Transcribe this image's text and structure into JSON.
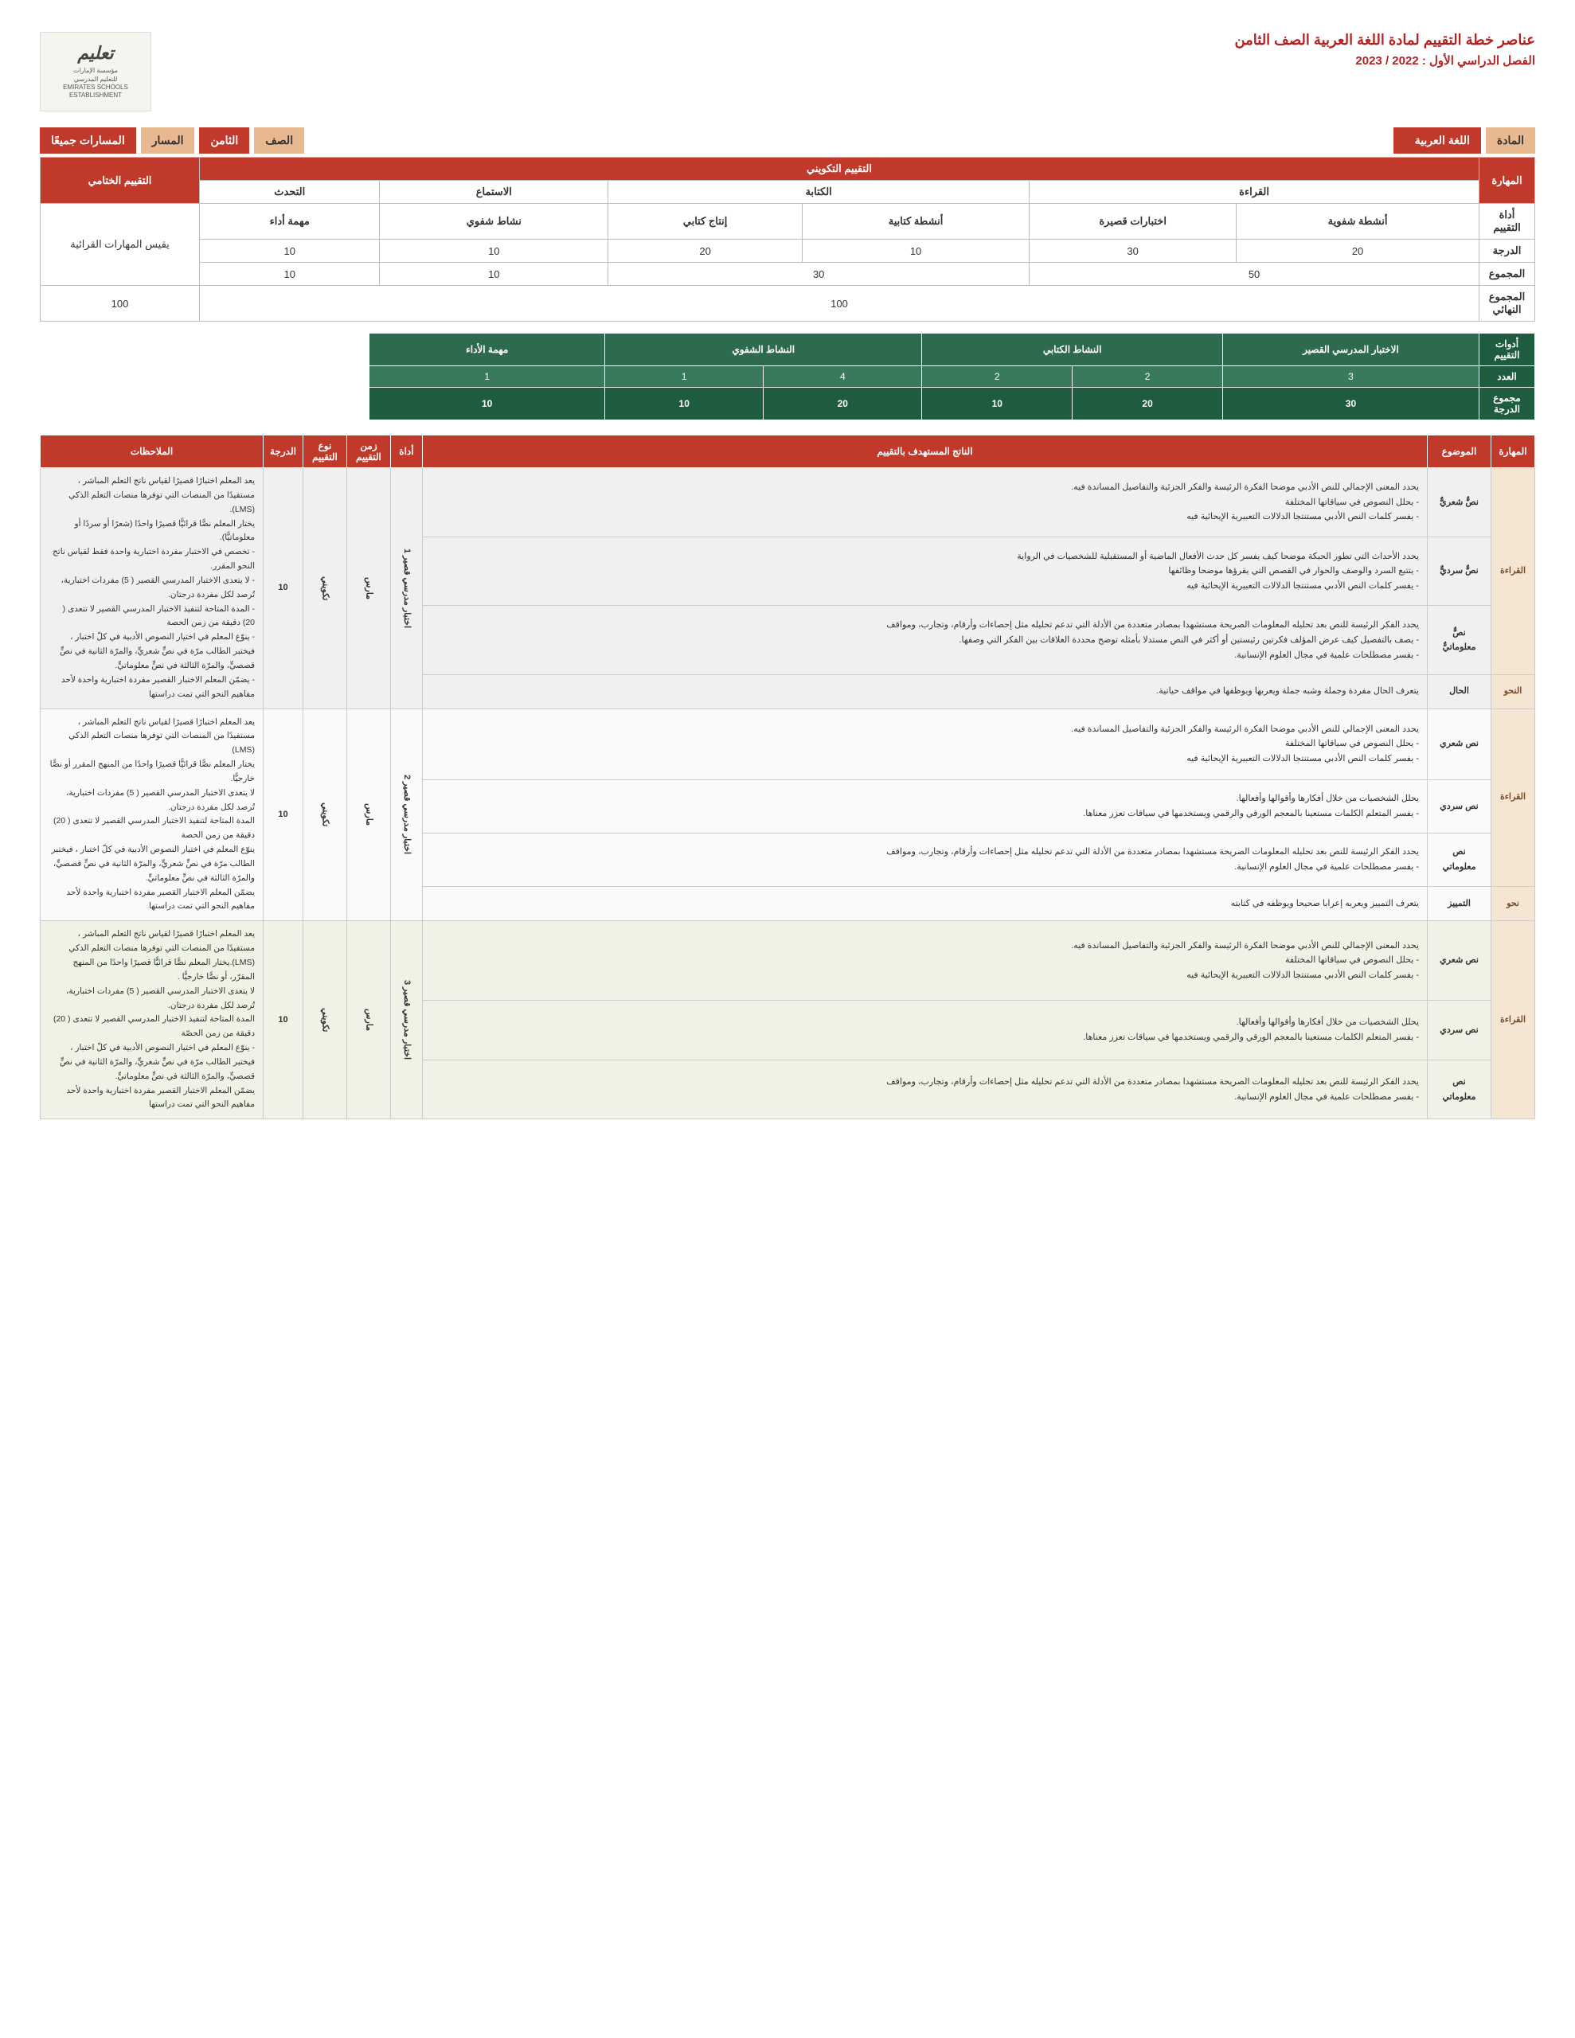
{
  "header": {
    "title": "عناصر خطة التقييم لمادة اللغة العربية الصف الثامن",
    "subtitle": "الفصل الدراسي الأول : 2022 / 2023",
    "logo_ar": "تعليم",
    "logo_lines": "مؤسسة الإمارات\nللتعليم المدرسي\nEMIRATES SCHOOLS\nESTABLISHMENT"
  },
  "banner": {
    "label_subject": "المادة",
    "subject": "اللغة العربية",
    "label_grade": "الصف",
    "grade": "الثامن",
    "label_track": "المسار",
    "track": "المسارات جميعًا"
  },
  "tbl1": {
    "headers": {
      "skill": "المهارة",
      "formative": "التقييم التكويني",
      "final": "التقييم الختامي",
      "reading": "القراءة",
      "writing": "الكتابة",
      "listening": "الاستماع",
      "speaking": "التحدث",
      "tool": "أداة التقييم",
      "oral_act": "أنشطة شفوية",
      "short_tests": "اختبارات قصيرة",
      "writing_act": "أنشطة كتابية",
      "writing_prod": "إنتاج كتابي",
      "oral_task": "نشاط شفوي",
      "perf_task": "مهمة أداء",
      "final_desc": "يقيس المهارات القرائية",
      "grade": "الدرجة",
      "total": "المجموع",
      "grand": "المجموع النهائي"
    },
    "grades": {
      "oral_act": "20",
      "short_tests": "30",
      "writing_act": "10",
      "writing_prod": "20",
      "oral_task": "10",
      "perf_task": "10"
    },
    "totals": {
      "reading": "50",
      "writing": "30",
      "listening": "10",
      "speaking": "10"
    },
    "grand_formative": "100",
    "grand_final": "100"
  },
  "tbl2": {
    "headers": {
      "tools": "أدوات التقييم",
      "short_test": "الاختبار المدرسي القصير",
      "writing_task": "النشاط الكتابي",
      "oral_task": "النشاط الشفوي",
      "perf_task": "مهمة الأداء",
      "count": "العدد",
      "total_grade": "مجموع الدرجة"
    },
    "counts": {
      "short_test": "3",
      "writing_task_a": "2",
      "writing_task_b": "2",
      "oral_task_a": "4",
      "oral_task_b": "1",
      "perf_task": "1"
    },
    "totals": {
      "short_test": "30",
      "writing_task_a": "20",
      "writing_task_b": "10",
      "oral_task_a": "20",
      "oral_task_b": "10",
      "perf_task": "10"
    }
  },
  "tbl3": {
    "headers": {
      "skill": "المهارة",
      "topic": "الموضوع",
      "outcome": "الناتج المستهدف بالتقييم",
      "tool": "أداة",
      "time": "زمن التقييم",
      "type": "نوع التقييم",
      "grade": "الدرجة",
      "notes": "الملاحظات"
    },
    "grp_A": {
      "skill": "القراءة",
      "rows": [
        {
          "topic": "نصٌّ شعريٌّ",
          "outcome": "يحدد المعنى الإجمالي للنص الأدبي موضحا الفكرة الرئيسة والفكر الجزئية والتفاصيل المساندة فيه.\n- يحلل النصوص في سياقاتها المختلفة\n- يفسر كلمات النص الأدبي مستنتجا الدلالات التعبيرية الإيحائية فيه"
        },
        {
          "topic": "نصٌّ سرديٌّ",
          "outcome": "يحدد الأحداث التي تطور الحبكة موضحا كيف يفسر كل حدث الأفعال الماضية أو المستقبلية للشخصيات في الرواية\n- يتتبع السرد والوصف والحوار في القصص التي يقرؤها موضحا وظائفها\n- يفسر كلمات النص الأدبي مستنتجا الدلالات التعبيرية الإيحائية فيه"
        },
        {
          "topic": "نصٌّ معلوماتيٌّ",
          "outcome": "يحدد الفكر الرئيسة للنص بعد تحليله المعلومات الصريحة مستشهدا بمصادر متعددة من الأدلة التي تدعم تحليله مثل إحصاءات وأرقام، وتجارب، ومواقف\n- يصف بالتفصيل كيف عرض المؤلف فكرتين رئيستين أو أكثر في النص مستدلا بأمثله توضح محددة العلاقات بين الفكر التي وصفها.\n- يفسر مصطلحات علمية في مجال العلوم الإنسانية."
        }
      ],
      "grammar_skill": "النحو",
      "grammar_topic": "الحال",
      "grammar_outcome": "يتعرف الحال مفردة وجملة وشبه جملة ويعربها ويوظفها في مواقف حياتية.",
      "tool": "اختبار مدرسي قصير 1",
      "time": "مارس",
      "type": "تكويني",
      "grade": "10",
      "notes": "يعد المعلم اختبارًا قصيرًا لقياس ناتج التعلم المباشر ، مستفيدًا من المنصات التي توفرها منصات التعلم الذكي (LMS).\nيختار المعلم نصًّا قرائيًّا قصيرًا واحدًا (شعرًا أو سردًا أو معلوماتيًّا).\n- تخصص في الاختبار مفردة اختبارية واحدة فقط لقياس ناتج النحو المقرر.\n- لا يتعدى الاختبار المدرسي القصير ( 5) مفردات اختبارية، تُرصد لكل مفردة درجتان.\n- المدة المتاحة لتنفيذ الاختبار المدرسي القصير لا تتعدى ( 20) دقيقة من زمن الحصة\n- ينوّع المعلم في اختيار النصوص الأدبية في كلّ اختبار ، فيختبر الطالب مرّة في نصٍّ شعريٍّ، والمرّة الثانية في نصٍّ قصصيٍّ، والمرّة الثالثة في نصٍّ معلوماتيٍّ.\n- يضمّن المعلم الاختبار القصير مفردة اختبارية واحدة لأحد مفاهيم النحو التي تمت دراستها"
    },
    "grp_B": {
      "skill": "القراءة",
      "rows": [
        {
          "topic": "نص شعري",
          "outcome": "يحدد المعنى الإجمالي للنص الأدبي موضحا الفكرة الرئيسة والفكر الجزئية والتفاصيل المساندة فيه.\n- يحلل النصوص في سياقاتها المختلفة\n- يفسر كلمات النص الأدبي مستنتجا الدلالات التعبيرية الإيحائية فيه"
        },
        {
          "topic": "نص سردي",
          "outcome": "يحلل الشخصيات من خلال أفكارها وأقوالها وأفعالها.\n- يفسر المتعلم الكلمات مستعينا بالمعجم الورقي والرقمي ويستخدمها في سياقات تعزز معناها."
        },
        {
          "topic": "نص معلوماتي",
          "outcome": "يحدد الفكر الرئيسة للنص بعد تحليله المعلومات الصريحة مستشهدا بمصادر متعددة من الأدلة التي تدعم تحليله مثل إحصاءات وأرقام، وتجارب، ومواقف\n- يفسر مصطلحات علمية في مجال العلوم الإنسانية."
        }
      ],
      "grammar_skill": "نحو",
      "grammar_topic": "التمييز",
      "grammar_outcome": "يتعرف التمييز ويعربه إعرابا صحيحا ويوظفه في كتابته",
      "tool": "اختبار مدرسي قصير 2",
      "time": "مارس",
      "type": "تكويني",
      "grade": "10",
      "notes": "يعد المعلم اختبارًا قصيرًا لقياس ناتج التعلم المباشر ، مستفيدًا من المنصات التي توفرها منصات التعلم الذكي (LMS)\nيختار المعلم نصًّا قرائيًّا قصيرًا واحدًا من المنهج المقرر أو نصًّا خارجيًّا.\nلا يتعدى الاختبار المدرسي القصير ( 5) مفردات اختبارية، تُرصد لكل مفردة درجتان.\nالمدة المتاحة لتنفيذ الاختبار المدرسي القصير لا تتعدى ( 20) دقيقة من زمن الحصة\nينوّع المعلم في اختيار النصوص الأدبية في كلّ اختبار ، فيختبر الطالب مرّة في نصٍّ شعريٍّ، والمرّة الثانية في نصٍّ قصصيٍّ، والمرّة الثالثة في نصٍّ معلوماتيٍّ.\nيضمّن المعلم الاختبار القصير مفردة اختبارية واحدة لأحد مفاهيم النحو التي تمت دراستها"
    },
    "grp_C": {
      "skill": "القراءة",
      "rows": [
        {
          "topic": "نص شعري",
          "outcome": "يحدد المعنى الإجمالي للنص الأدبي موضحا الفكرة الرئيسة والفكر  الجزئية والتفاصيل المساندة فيه.\n- يحلل النصوص في سياقاتها المختلفة\n- يفسر كلمات النص الأدبي مستنتجا الدلالات التعبيرية الإيحائية فيه"
        },
        {
          "topic": "نص سردي",
          "outcome": "يحلل الشخصيات من خلال أفكارها وأقوالها وأفعالها.\n- يفسر المتعلم الكلمات مستعينا بالمعجم الورقي والرقمي ويستخدمها في سياقات تعزز معناها."
        },
        {
          "topic": "نص معلوماتي",
          "outcome": "يحدد الفكر الرئيسة للنص بعد تحليله المعلومات الصريحة مستشهدا بمصادر متعددة من الأدلة التي تدعم تحليله مثل إحصاءات وأرقام، وتجارب، ومواقف\n- يفسر مصطلحات علمية في مجال العلوم الإنسانية."
        }
      ],
      "tool": "اختبار مدرسي قصير 3",
      "time": "مارس",
      "type": "تكويني",
      "grade": "10",
      "notes": "يعد المعلم اختبارًا قصيرًا لقياس ناتج التعلم المباشر ، مستفيدًا من المنصات التي توفرها منصات التعلم الذكي (LMS).يختار المعلم نصًّا قرائيًّا قصيرًا واحدًا من المنهج المقرّر، أو نصًّا خارجيًّا .\nلا يتعدى الاختبار المدرسي القصير ( 5) مفردات اختبارية، تُرصد لكل مفردة درجتان.\nالمدة المتاحة لتنفيذ الاختبار المدرسي القصير لا تتعدى ( 20) دقيقة من زمن الحصّة\n- ينوّع المعلم في اختيار النصوص الأدبية في كلّ اختبار ، فيختبر الطالب مرّة في نصٍّ شعريٍّ، والمرّة الثانية في نصٍّ قصصيٍّ، والمرّة الثالثة في نصٍّ معلوماتيٍّ.\nيضمّن المعلم الاختبار القصير مفردة اختبارية واحدة لأحد مفاهيم النحو التي تمت دراستها"
    }
  }
}
